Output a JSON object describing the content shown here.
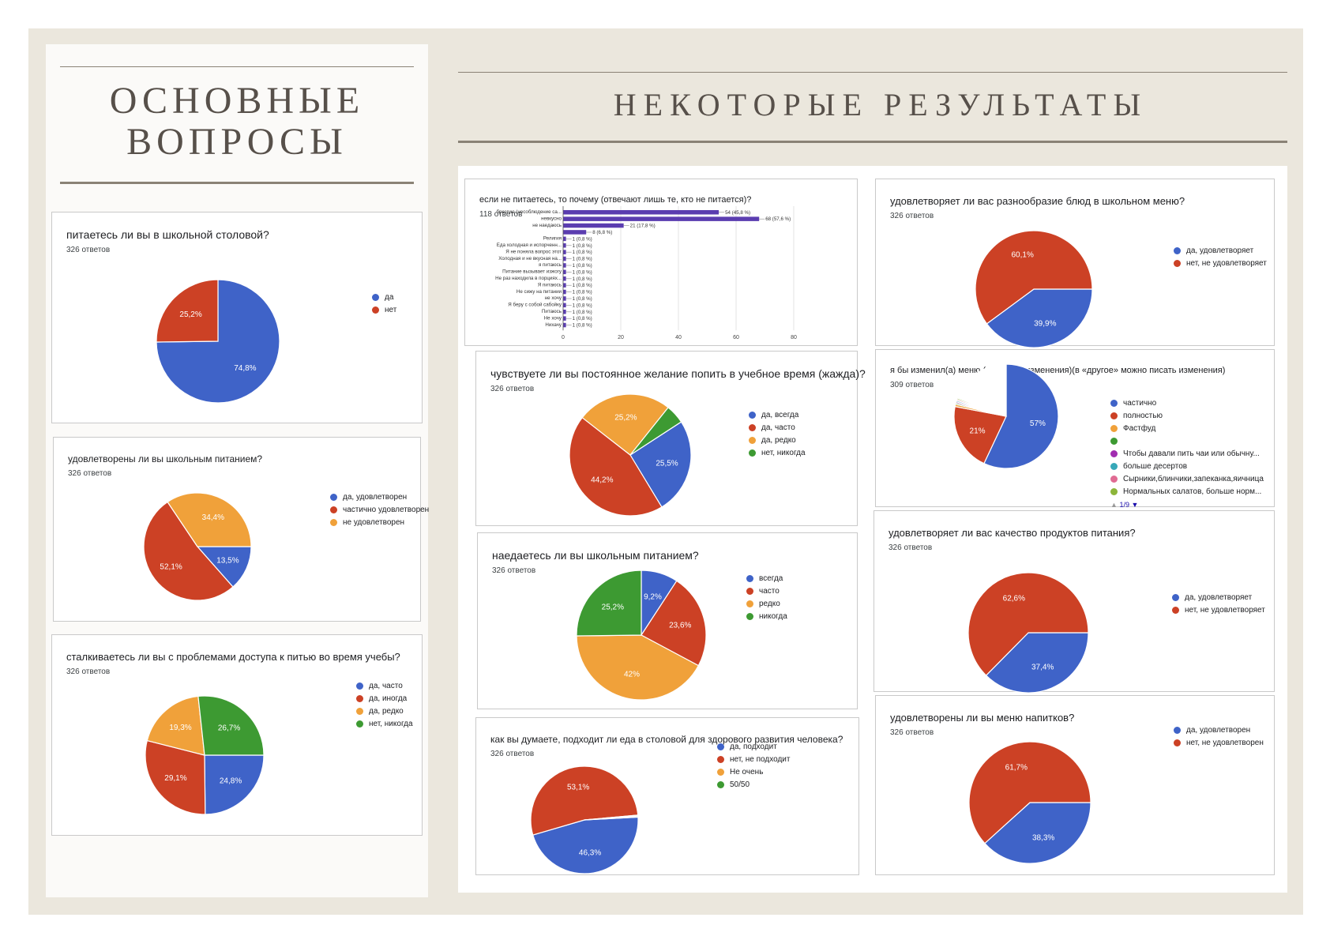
{
  "left_heading": [
    "ОСНОВНЫЕ",
    "ВОПРОСЫ"
  ],
  "right_heading": "НЕКОТОРЫЕ РЕЗУЛЬТАТЫ",
  "colors": {
    "blue": "#3f63c8",
    "red": "#cc4125",
    "orange": "#f0a13a",
    "green": "#3d9a32",
    "purple": "#5b3db0",
    "pink": "#e06b93",
    "teal": "#37a8b8",
    "olive": "#8cb53a",
    "lime": "#8fcb4a",
    "magenta": "#a12db0"
  },
  "chart_data": [
    {
      "id": "c1",
      "type": "pie",
      "title": "питаетесь ли вы в школьной столовой?",
      "subtitle": "326 ответов",
      "slices": [
        {
          "label": "да",
          "value": 74.8,
          "text": "74,8%",
          "color": "#3f63c8"
        },
        {
          "label": "нет",
          "value": 25.2,
          "text": "25,2%",
          "color": "#cc4125"
        }
      ],
      "legend": [
        "да",
        "нет"
      ],
      "legend_colors": [
        "#3f63c8",
        "#cc4125"
      ]
    },
    {
      "id": "c2",
      "type": "pie",
      "title": "удовлетворены ли вы школьным питанием?",
      "subtitle": "326 ответов",
      "slices": [
        {
          "label": "да, удовлетворен",
          "value": 13.5,
          "text": "13,5%",
          "color": "#3f63c8"
        },
        {
          "label": "частично удовлетворен",
          "value": 52.1,
          "text": "52,1%",
          "color": "#cc4125"
        },
        {
          "label": "не удовлетворен",
          "value": 34.4,
          "text": "34,4%",
          "color": "#f0a13a"
        }
      ],
      "legend": [
        "да, удовлетворен",
        "частично удовлетворен",
        "не удовлетворен"
      ],
      "legend_colors": [
        "#3f63c8",
        "#cc4125",
        "#f0a13a"
      ]
    },
    {
      "id": "c3",
      "type": "pie",
      "title": "сталкиваетесь ли вы с проблемами доступа к питью во время учебы?",
      "subtitle": "326 ответов",
      "slices": [
        {
          "label": "да, часто",
          "value": 24.8,
          "text": "24,8%",
          "color": "#3f63c8"
        },
        {
          "label": "да, иногда",
          "value": 29.1,
          "text": "29,1%",
          "color": "#cc4125"
        },
        {
          "label": "да, редко",
          "value": 19.3,
          "text": "19,3%",
          "color": "#f0a13a"
        },
        {
          "label": "нет, никогда",
          "value": 26.7,
          "text": "26,7%",
          "color": "#3d9a32"
        }
      ],
      "legend": [
        "да, часто",
        "да, иногда",
        "да, редко",
        "нет, никогда"
      ],
      "legend_colors": [
        "#3f63c8",
        "#cc4125",
        "#f0a13a",
        "#3d9a32"
      ]
    },
    {
      "id": "c4",
      "type": "bar",
      "title": "если не питаетесь, то почему (отвечают лишь те, кто не питается)?",
      "subtitle": "118 ответов",
      "categories": [
        "брезгую (несоблюдение са...",
        "невкусно",
        "не наедаюсь",
        "",
        "Религия",
        "Еда холодная и испорченн...",
        "Я не поняла вопрос этот",
        "Холодная и не вкусная на...",
        "я питаюсь",
        "Питание вызывает изжогу",
        "Не раз находила в порциях...",
        "Я питаюсь",
        "Не сижу на питании",
        "не хочу",
        "Я беру с собой сабойку",
        "Питаюсь",
        "Не хочу",
        "Нихачу"
      ],
      "values": [
        54,
        68,
        21,
        8,
        1,
        1,
        1,
        1,
        1,
        1,
        1,
        1,
        1,
        1,
        1,
        1,
        1,
        1
      ],
      "value_labels": [
        "54 (45,8 %)",
        "68 (57,6 %)",
        "21 (17,8 %)",
        "8 (6,8 %)",
        "1 (0,8 %)",
        "1 (0,8 %)",
        "1 (0,8 %)",
        "1 (0,8 %)",
        "1 (0,8 %)",
        "1 (0,8 %)",
        "1 (0,8 %)",
        "1 (0,8 %)",
        "1 (0,8 %)",
        "1 (0,8 %)",
        "1 (0,8 %)",
        "1 (0,8 %)",
        "1 (0,8 %)",
        "1 (0,8 %)"
      ],
      "xticks": [
        0,
        20,
        40,
        60,
        80
      ],
      "xlim": [
        0,
        80
      ],
      "bar_color": "#5b3db0"
    },
    {
      "id": "c5",
      "type": "pie",
      "title": "чувствуете ли вы постоянное желание попить в учебное время (жажда)?",
      "subtitle": "326 ответов",
      "slices": [
        {
          "label": "да, всегда",
          "value": 25.5,
          "text": "25,5%",
          "color": "#3f63c8"
        },
        {
          "label": "да, часто",
          "value": 44.2,
          "text": "44,2%",
          "color": "#cc4125"
        },
        {
          "label": "да, редко",
          "value": 25.2,
          "text": "25,2%",
          "color": "#f0a13a"
        },
        {
          "label": "нет, никогда",
          "value": 5.1,
          "text": "",
          "color": "#3d9a32"
        }
      ],
      "legend": [
        "да, всегда",
        "да, часто",
        "да, редко",
        "нет, никогда"
      ],
      "legend_colors": [
        "#3f63c8",
        "#cc4125",
        "#f0a13a",
        "#3d9a32"
      ]
    },
    {
      "id": "c6",
      "type": "pie",
      "title": "наедаетесь ли вы школьным питанием?",
      "subtitle": "326 ответов",
      "slices": [
        {
          "label": "всегда",
          "value": 9.2,
          "text": "9,2%",
          "color": "#3f63c8"
        },
        {
          "label": "часто",
          "value": 23.6,
          "text": "23,6%",
          "color": "#cc4125"
        },
        {
          "label": "редко",
          "value": 42,
          "text": "42%",
          "color": "#f0a13a"
        },
        {
          "label": "никогда",
          "value": 25.2,
          "text": "25,2%",
          "color": "#3d9a32"
        }
      ],
      "legend": [
        "всегда",
        "часто",
        "редко",
        "никогда"
      ],
      "legend_colors": [
        "#3f63c8",
        "#cc4125",
        "#f0a13a",
        "#3d9a32"
      ]
    },
    {
      "id": "c7",
      "type": "pie",
      "title": "как вы думаете, подходит ли еда в столовой для здорового развития человека?",
      "subtitle": "326 ответов",
      "slices": [
        {
          "label": "да, подходит",
          "value": 46.3,
          "text": "46,3%",
          "color": "#3f63c8"
        },
        {
          "label": "нет, не подходит",
          "value": 53.1,
          "text": "53,1%",
          "color": "#cc4125"
        },
        {
          "label": "Не очень",
          "value": 0.3,
          "text": "",
          "color": "#f0a13a"
        },
        {
          "label": "50/50",
          "value": 0.3,
          "text": "",
          "color": "#3d9a32"
        }
      ],
      "legend": [
        "да, подходит",
        "нет, не подходит",
        "Не очень",
        "50/50"
      ],
      "legend_colors": [
        "#3f63c8",
        "#cc4125",
        "#f0a13a",
        "#3d9a32"
      ]
    },
    {
      "id": "c8",
      "type": "pie",
      "title": "удовлетворяет ли  вас разнообразие блюд в школьном меню?",
      "subtitle": "326 ответов",
      "slices": [
        {
          "label": "да, удовлетворяет",
          "value": 39.9,
          "text": "39,9%",
          "color": "#3f63c8"
        },
        {
          "label": "нет, не удовлетворяет",
          "value": 60.1,
          "text": "60,1%",
          "color": "#cc4125"
        }
      ],
      "legend": [
        "да, удовлетворяет",
        "нет, не удовлетворяет"
      ],
      "legend_colors": [
        "#3f63c8",
        "#cc4125"
      ]
    },
    {
      "id": "c9",
      "type": "pie",
      "title": "я бы изменил(а) меню (те, кто за изменения)(в «другое» можно писать изменения)",
      "subtitle": "309 ответов",
      "slices": [
        {
          "label": "частично",
          "value": 57,
          "text": "57%",
          "color": "#3f63c8"
        },
        {
          "label": "полностью",
          "value": 21,
          "text": "21%",
          "color": "#cc4125"
        },
        {
          "label": "Фастфуд",
          "value": 0.7,
          "text": "",
          "color": "#f0a13a"
        },
        {
          "label": "",
          "value": 0.4,
          "text": "",
          "color": "#3d9a32"
        },
        {
          "label": "Чтобы давали пить чаи или обычну...",
          "value": 0.4,
          "text": "",
          "color": "#a12db0"
        },
        {
          "label": "больше десертов",
          "value": 0.4,
          "text": "",
          "color": "#37a8b8"
        },
        {
          "label": "Сырники,блинчики,запеканка,яичница",
          "value": 0.4,
          "text": "",
          "color": "#e06b93"
        },
        {
          "label": "Нормальных салатов, больше норм...",
          "value": 0.4,
          "text": "",
          "color": "#8cb53a"
        },
        {
          "label": "other",
          "value": 19.3,
          "text": "",
          "color": "#ffffff"
        }
      ],
      "legend": [
        "частично",
        "полностью",
        "Фастфуд",
        "",
        "Чтобы давали пить чаи или обычну...",
        "больше десертов",
        "Сырники,блинчики,запеканка,яичница",
        "Нормальных салатов, больше норм..."
      ],
      "legend_colors": [
        "#3f63c8",
        "#cc4125",
        "#f0a13a",
        "#3d9a32",
        "#a12db0",
        "#37a8b8",
        "#e06b93",
        "#8cb53a"
      ],
      "pager": "1/9"
    },
    {
      "id": "c10",
      "type": "pie",
      "title": "удовлетворяет ли вас качество продуктов питания?",
      "subtitle": "326 ответов",
      "slices": [
        {
          "label": "да, удовлетворяет",
          "value": 37.4,
          "text": "37,4%",
          "color": "#3f63c8"
        },
        {
          "label": "нет, не удовлетворяет",
          "value": 62.6,
          "text": "62,6%",
          "color": "#cc4125"
        }
      ],
      "legend": [
        "да, удовлетворяет",
        "нет, не удовлетворяет"
      ],
      "legend_colors": [
        "#3f63c8",
        "#cc4125"
      ]
    },
    {
      "id": "c11",
      "type": "pie",
      "title": "удовлетворены ли вы меню напитков?",
      "subtitle": "326 ответов",
      "slices": [
        {
          "label": "да, удовлетворен",
          "value": 38.3,
          "text": "38,3%",
          "color": "#3f63c8"
        },
        {
          "label": "нет, не удовлетворен",
          "value": 61.7,
          "text": "61,7%",
          "color": "#cc4125"
        }
      ],
      "legend": [
        "да, удовлетворен",
        "нет, не удовлетворен"
      ],
      "legend_colors": [
        "#3f63c8",
        "#cc4125"
      ]
    }
  ]
}
